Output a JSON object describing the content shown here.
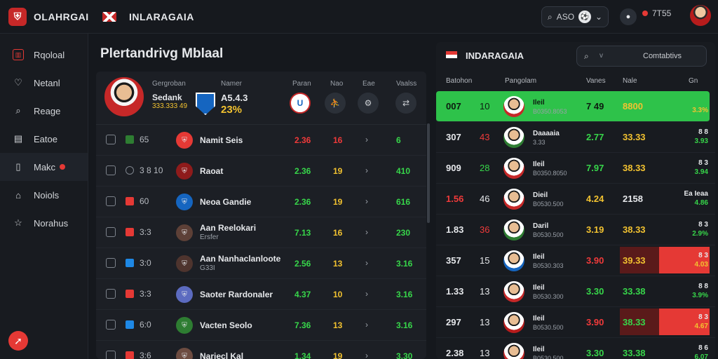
{
  "topbar": {
    "brand": "OLAHRGAI",
    "title": "INLARAGAIA",
    "search_value": "ASO",
    "notif_text": "7T55"
  },
  "sidebar": {
    "items": [
      {
        "label": "Rqoloal",
        "icon": "soccer-field-icon"
      },
      {
        "label": "Netanl",
        "icon": "heart-icon"
      },
      {
        "label": "Reage",
        "icon": "search-icon"
      },
      {
        "label": "Eatoe",
        "icon": "calendar-icon"
      },
      {
        "label": "Makc",
        "icon": "book-icon"
      },
      {
        "label": "Noiols",
        "icon": "stadium-icon"
      },
      {
        "label": "Norahus",
        "icon": "star-icon"
      }
    ]
  },
  "main": {
    "title": "Plertandrivg Mblaal",
    "featured": {
      "label_a": "Gergroban",
      "label_b": "Namer",
      "name": "Sedank",
      "subtitle": "333.333 49",
      "value": "A5.4.3",
      "percent": "23%",
      "col_labels": [
        "Paran",
        "Nao",
        "Eae",
        "Vaalss"
      ]
    },
    "rows": [
      {
        "code": "65",
        "name": "Namit Seis",
        "sub": "",
        "o1": "2.36",
        "o2": "16",
        "o3": "6",
        "c1": "r",
        "c2": "r",
        "c3": "g",
        "mini": "#2e7d32",
        "crest": "#e53935"
      },
      {
        "code": "3 8 10",
        "name": "Raoat",
        "sub": "",
        "o1": "2.36",
        "o2": "19",
        "o3": "410",
        "c1": "g",
        "c2": "y",
        "c3": "g",
        "mini": "",
        "crest": "#8e1b1b"
      },
      {
        "code": "60",
        "name": "Neoa Gandie",
        "sub": "",
        "o1": "2.36",
        "o2": "19",
        "o3": "616",
        "c1": "g",
        "c2": "y",
        "c3": "g",
        "mini": "#e53935",
        "crest": "#1565c0"
      },
      {
        "code": "3:3",
        "name": "Aan Reelokari",
        "sub": "Ersfer",
        "o1": "7.13",
        "o2": "16",
        "o3": "230",
        "c1": "g",
        "c2": "y",
        "c3": "g",
        "mini": "#e53935",
        "crest": "#5d4037"
      },
      {
        "code": "3:0",
        "name": "Aan Nanhaclanloote",
        "sub": "G33I",
        "o1": "2.56",
        "o2": "13",
        "o3": "3.16",
        "c1": "g",
        "c2": "y",
        "c3": "g",
        "mini": "#1e88e5",
        "crest": "#4e342e"
      },
      {
        "code": "3:3",
        "name": "Saoter Rardonaler",
        "sub": "",
        "o1": "4.37",
        "o2": "10",
        "o3": "3.16",
        "c1": "g",
        "c2": "y",
        "c3": "g",
        "mini": "#e53935",
        "crest": "#5c6bc0"
      },
      {
        "code": "6:0",
        "name": "Vacten Seolo",
        "sub": "",
        "o1": "7.36",
        "o2": "13",
        "o3": "3.16",
        "c1": "g",
        "c2": "y",
        "c3": "g",
        "mini": "#1e88e5",
        "crest": "#2e7d32"
      },
      {
        "code": "3:6",
        "name": "Nariecl Kal",
        "sub": "",
        "o1": "1.34",
        "o2": "19",
        "o3": "3.30",
        "c1": "g",
        "c2": "y",
        "c3": "g",
        "mini": "#e53935",
        "crest": "#6d4c41"
      }
    ]
  },
  "right": {
    "title": "INDARAGAIA",
    "search_filter": "v",
    "search_text": "Comtabtivs",
    "cols": [
      "Batohon",
      "Pangolam",
      "Vanes",
      "Nale",
      "Gn"
    ],
    "rows": [
      {
        "s1": "007",
        "s2": "10",
        "name": "Ileil",
        "sub": "B0350.8053",
        "v1": "7 49",
        "v2": "8800",
        "r1": "",
        "r2": "3.3%",
        "s1c": "d",
        "s2c": "d",
        "v1c": "d",
        "v2c": "y",
        "r2c": "y",
        "av": "#c62828",
        "mode": "green"
      },
      {
        "s1": "307",
        "s2": "43",
        "name": "Daaaaia",
        "sub": "3.33",
        "v1": "2.77",
        "v2": "33.33",
        "r1": "8 8",
        "r2": "3.93",
        "s1c": "w",
        "s2c": "r",
        "v1c": "g",
        "v2c": "y",
        "r2c": "g",
        "av": "#2e7d32",
        "mode": ""
      },
      {
        "s1": "909",
        "s2": "28",
        "name": "Ileil",
        "sub": "B0350.8050",
        "v1": "7.97",
        "v2": "38.33",
        "r1": "8 3",
        "r2": "3.94",
        "s1c": "w",
        "s2c": "g",
        "v1c": "g",
        "v2c": "y",
        "r2c": "g",
        "av": "#c62828",
        "mode": ""
      },
      {
        "s1": "1.56",
        "s2": "46",
        "name": "Dieil",
        "sub": "B0530.500",
        "v1": "4.24",
        "v2": "2158",
        "r1": "Ea Ieaa",
        "r2": "4.86",
        "s1c": "r",
        "s2c": "w",
        "v1c": "y",
        "v2c": "w",
        "r2c": "g",
        "av": "#c62828",
        "mode": ""
      },
      {
        "s1": "1.83",
        "s2": "36",
        "name": "Daril",
        "sub": "B0530.500",
        "v1": "3.19",
        "v2": "38.33",
        "r1": "8 3",
        "r2": "2.9%",
        "s1c": "w",
        "s2c": "r",
        "v1c": "y",
        "v2c": "y",
        "r2c": "g",
        "av": "#2e7d32",
        "mode": ""
      },
      {
        "s1": "357",
        "s2": "15",
        "name": "Ileil",
        "sub": "B0530.303",
        "v1": "3.90",
        "v2": "39.33",
        "r1": "8 3",
        "r2": "4.03",
        "s1c": "w",
        "s2c": "w",
        "v1c": "r",
        "v2c": "y",
        "r2c": "y",
        "av": "#1565c0",
        "mode": "red"
      },
      {
        "s1": "1.33",
        "s2": "13",
        "name": "Ileil",
        "sub": "B0530.300",
        "v1": "3.30",
        "v2": "33.38",
        "r1": "8 8",
        "r2": "3.9%",
        "s1c": "w",
        "s2c": "w",
        "v1c": "g",
        "v2c": "g",
        "r2c": "g",
        "av": "#c62828",
        "mode": ""
      },
      {
        "s1": "297",
        "s2": "13",
        "name": "Ileil",
        "sub": "B0530.500",
        "v1": "3.90",
        "v2": "38.33",
        "r1": "8 3",
        "r2": "4.67",
        "s1c": "w",
        "s2c": "w",
        "v1c": "r",
        "v2c": "g",
        "r2c": "y",
        "av": "#b71c1c",
        "mode": "red"
      },
      {
        "s1": "2.38",
        "s2": "13",
        "name": "Ileil",
        "sub": "B0530.500",
        "v1": "3.30",
        "v2": "33.38",
        "r1": "8 6",
        "r2": "6.07",
        "s1c": "w",
        "s2c": "w",
        "v1c": "g",
        "v2c": "g",
        "r2c": "g",
        "av": "#c62828",
        "mode": ""
      }
    ]
  }
}
